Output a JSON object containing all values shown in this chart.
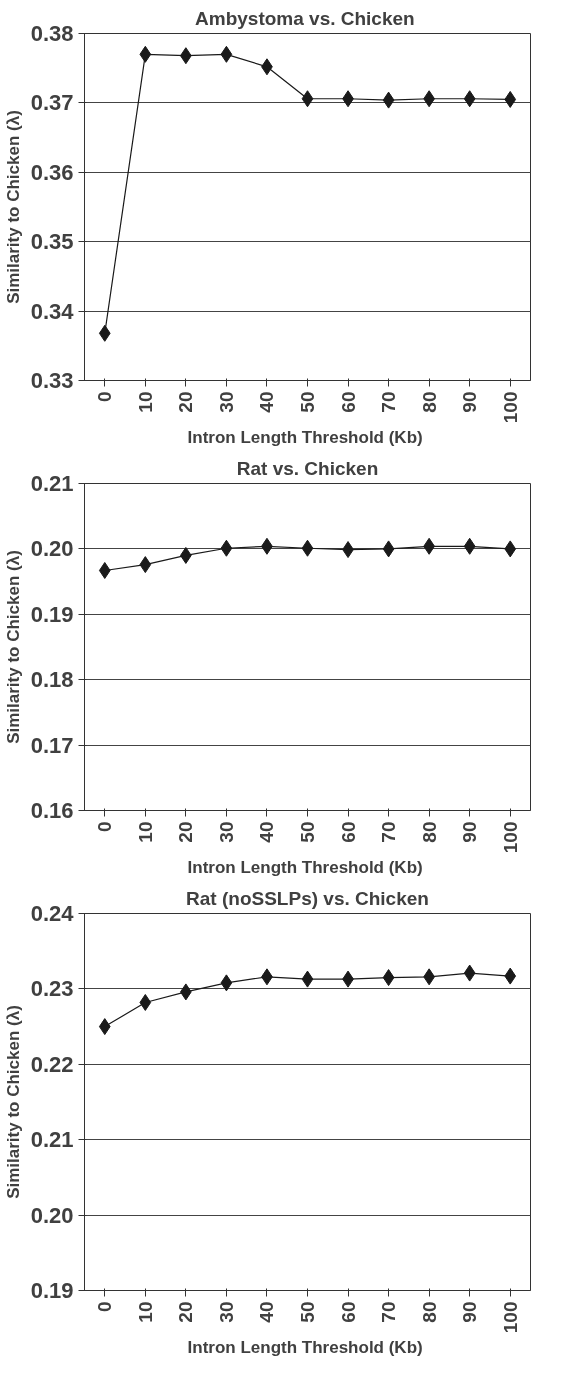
{
  "chart_data": [
    {
      "type": "line",
      "title": "Ambystoma  vs. Chicken",
      "xlabel": "Intron  Length Threshold (Kb)",
      "ylabel": "Similarity to Chicken (λ)",
      "categories": [
        "0",
        "10",
        "20",
        "30",
        "40",
        "50",
        "60",
        "70",
        "80",
        "90",
        "100"
      ],
      "series": [
        {
          "color": "#1a1a1a",
          "values": [
            0.3368,
            0.377,
            0.3768,
            0.377,
            0.3752,
            0.3706,
            0.3706,
            0.3704,
            0.3706,
            0.3706,
            0.3705
          ]
        }
      ],
      "ylim": [
        0.33,
        0.38
      ],
      "yticks": [
        {
          "value": 0.33,
          "label": "0.33"
        },
        {
          "value": 0.34,
          "label": "0.34"
        },
        {
          "value": 0.35,
          "label": "0.35"
        },
        {
          "value": 0.36,
          "label": "0.36"
        },
        {
          "value": 0.37,
          "label": "0.37"
        },
        {
          "value": 0.38,
          "label": "0.38"
        }
      ],
      "grid": "y",
      "marker": "diamond",
      "line_style": "solid"
    },
    {
      "type": "line",
      "title": "Rat vs. Chicken",
      "xlabel": "Intron  Length Threshold (Kb)",
      "ylabel": "Similarity to Chicken (λ)",
      "categories": [
        "0",
        "10",
        "20",
        "30",
        "40",
        "50",
        "60",
        "70",
        "80",
        "90",
        "100"
      ],
      "series": [
        {
          "color": "#1a1a1a",
          "values": [
            0.1967,
            0.1976,
            0.199,
            0.2001,
            0.2004,
            0.2001,
            0.1999,
            0.2,
            0.2004,
            0.2004,
            0.2
          ]
        }
      ],
      "ylim": [
        0.16,
        0.21
      ],
      "yticks": [
        {
          "value": 0.16,
          "label": "0.16"
        },
        {
          "value": 0.17,
          "label": "0.17"
        },
        {
          "value": 0.18,
          "label": "0.18"
        },
        {
          "value": 0.19,
          "label": "0.19"
        },
        {
          "value": 0.2,
          "label": "0.20"
        },
        {
          "value": 0.21,
          "label": "0.21"
        }
      ],
      "grid": "y",
      "marker": "diamond",
      "line_style": "solid"
    },
    {
      "type": "line",
      "title": "Rat (noSSLPs) vs. Chicken",
      "xlabel": "Intron  Length Threshold (Kb)",
      "ylabel": "Similarity to Chicken (λ)",
      "categories": [
        "0",
        "10",
        "20",
        "30",
        "40",
        "50",
        "60",
        "70",
        "80",
        "90",
        "100"
      ],
      "series": [
        {
          "color": "#1a1a1a",
          "values": [
            0.225,
            0.2282,
            0.2296,
            0.2308,
            0.2316,
            0.2313,
            0.2313,
            0.2315,
            0.2316,
            0.2321,
            0.2317
          ]
        }
      ],
      "ylim": [
        0.19,
        0.24
      ],
      "yticks": [
        {
          "value": 0.19,
          "label": "0.19"
        },
        {
          "value": 0.2,
          "label": "0.20"
        },
        {
          "value": 0.21,
          "label": "0.21"
        },
        {
          "value": 0.22,
          "label": "0.22"
        },
        {
          "value": 0.23,
          "label": "0.23"
        },
        {
          "value": 0.24,
          "label": "0.24"
        }
      ],
      "grid": "y",
      "marker": "diamond",
      "line_style": "solid"
    }
  ]
}
